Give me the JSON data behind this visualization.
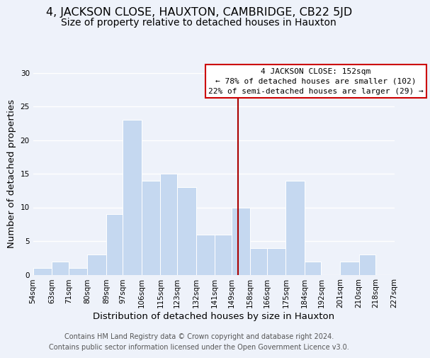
{
  "title": "4, JACKSON CLOSE, HAUXTON, CAMBRIDGE, CB22 5JD",
  "subtitle": "Size of property relative to detached houses in Hauxton",
  "xlabel": "Distribution of detached houses by size in Hauxton",
  "ylabel": "Number of detached properties",
  "footer_lines": [
    "Contains HM Land Registry data © Crown copyright and database right 2024.",
    "Contains public sector information licensed under the Open Government Licence v3.0."
  ],
  "bins_left": [
    54,
    63,
    71,
    80,
    89,
    97,
    106,
    115,
    123,
    132,
    141,
    149,
    158,
    166,
    175,
    184,
    192,
    201,
    210,
    218
  ],
  "bins_right": [
    63,
    71,
    80,
    89,
    97,
    106,
    115,
    123,
    132,
    141,
    149,
    158,
    166,
    175,
    184,
    192,
    201,
    210,
    218,
    227
  ],
  "counts": [
    1,
    2,
    1,
    3,
    9,
    23,
    14,
    15,
    13,
    6,
    6,
    10,
    4,
    4,
    14,
    2,
    0,
    2,
    3,
    0
  ],
  "bar_color": "#c5d8f0",
  "bar_edge_color": "#ffffff",
  "property_size": 152,
  "vline_color": "#aa0000",
  "annotation_title": "4 JACKSON CLOSE: 152sqm",
  "annotation_line1": "← 78% of detached houses are smaller (102)",
  "annotation_line2": "22% of semi-detached houses are larger (29) →",
  "annotation_box_facecolor": "#ffffff",
  "annotation_box_edgecolor": "#cc0000",
  "ylim": [
    0,
    30
  ],
  "yticks": [
    0,
    5,
    10,
    15,
    20,
    25,
    30
  ],
  "tick_labels": [
    "54sqm",
    "63sqm",
    "71sqm",
    "80sqm",
    "89sqm",
    "97sqm",
    "106sqm",
    "115sqm",
    "123sqm",
    "132sqm",
    "141sqm",
    "149sqm",
    "158sqm",
    "166sqm",
    "175sqm",
    "184sqm",
    "192sqm",
    "201sqm",
    "210sqm",
    "218sqm",
    "227sqm"
  ],
  "background_color": "#eef2fa",
  "grid_color": "#ffffff",
  "title_fontsize": 11.5,
  "subtitle_fontsize": 10,
  "axis_label_fontsize": 9.5,
  "tick_fontsize": 7.5,
  "annotation_fontsize": 8,
  "footer_fontsize": 7
}
